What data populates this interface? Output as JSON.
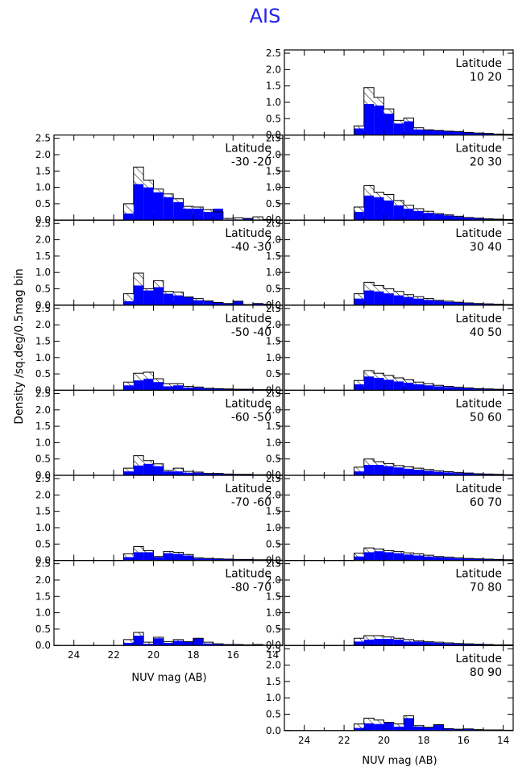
{
  "title": "AIS",
  "colors": {
    "title": "#2222ee",
    "observed": "#0000ff"
  },
  "chart_data": {
    "type": "histogram",
    "title": "AIS",
    "ylabel": "Density /sq.deg/0.5mag bin",
    "xlabel": "NUV mag (AB)",
    "xlim": [
      25,
      13.5
    ],
    "ylim": [
      0,
      2.6
    ],
    "x_ticks": [
      "24",
      "22",
      "20",
      "18",
      "16",
      "14"
    ],
    "y_ticks": [
      "0.0",
      "0.5",
      "1.0",
      "1.5",
      "2.0",
      "2.5"
    ],
    "bin_edges": [
      21.5,
      21.0,
      20.5,
      20.0,
      19.5,
      19.0,
      18.5,
      18.0,
      17.5,
      17.0,
      16.5,
      16.0,
      15.5,
      15.0,
      14.5,
      14.0,
      13.5
    ],
    "series": [
      {
        "name": "total"
      },
      {
        "name": "observed"
      }
    ],
    "legend": "none",
    "panels": [
      {
        "label_top": "Latitude",
        "label_bottom": "10  20",
        "hatched": [
          0.28,
          1.45,
          1.15,
          0.8,
          0.45,
          0.52,
          0.22,
          0.16,
          0.14,
          0.12,
          0.1,
          0.08,
          0.06,
          0.05,
          0.03,
          0.02
        ],
        "filled": [
          0.2,
          0.95,
          0.9,
          0.65,
          0.35,
          0.42,
          0.17,
          0.16,
          0.14,
          0.12,
          0.12,
          0.08,
          0.06,
          0.05,
          0.03,
          0.02
        ]
      },
      {
        "label_top": "Latitude",
        "label_bottom": "-30  -20",
        "hatched": [
          0.5,
          1.62,
          1.22,
          0.95,
          0.8,
          0.65,
          0.42,
          0.4,
          0.32,
          0.25,
          0.05,
          0.07,
          0.05,
          0.1,
          0.02,
          0.0
        ],
        "filled": [
          0.2,
          1.1,
          1.0,
          0.85,
          0.7,
          0.55,
          0.35,
          0.35,
          0.25,
          0.35,
          0.02,
          0.02,
          0.05,
          0.02,
          0.0,
          0.0
        ]
      },
      {
        "label_top": "Latitude",
        "label_bottom": "20  30",
        "hatched": [
          0.4,
          1.05,
          0.85,
          0.78,
          0.6,
          0.45,
          0.35,
          0.27,
          0.2,
          0.16,
          0.12,
          0.08,
          0.06,
          0.04,
          0.03,
          0.02
        ],
        "filled": [
          0.25,
          0.75,
          0.7,
          0.6,
          0.45,
          0.35,
          0.28,
          0.22,
          0.18,
          0.14,
          0.1,
          0.08,
          0.06,
          0.04,
          0.03,
          0.02
        ]
      },
      {
        "label_top": "Latitude",
        "label_bottom": "-40  -30",
        "hatched": [
          0.35,
          0.98,
          0.5,
          0.75,
          0.42,
          0.4,
          0.25,
          0.2,
          0.13,
          0.08,
          0.05,
          0.12,
          0.02,
          0.05,
          0.03,
          0.0
        ],
        "filled": [
          0.12,
          0.6,
          0.45,
          0.55,
          0.35,
          0.3,
          0.25,
          0.15,
          0.13,
          0.08,
          0.05,
          0.12,
          0.02,
          0.05,
          0.03,
          0.0
        ]
      },
      {
        "label_top": "Latitude",
        "label_bottom": "30  40",
        "hatched": [
          0.35,
          0.7,
          0.6,
          0.5,
          0.42,
          0.32,
          0.26,
          0.2,
          0.15,
          0.12,
          0.09,
          0.07,
          0.05,
          0.04,
          0.03,
          0.02
        ],
        "filled": [
          0.2,
          0.45,
          0.42,
          0.36,
          0.3,
          0.25,
          0.2,
          0.16,
          0.13,
          0.1,
          0.08,
          0.06,
          0.05,
          0.04,
          0.03,
          0.02
        ]
      },
      {
        "label_top": "Latitude",
        "label_bottom": "-50  -40",
        "hatched": [
          0.25,
          0.52,
          0.55,
          0.35,
          0.2,
          0.2,
          0.12,
          0.1,
          0.06,
          0.05,
          0.04,
          0.03,
          0.03,
          0.02,
          0.02,
          0.01
        ],
        "filled": [
          0.15,
          0.3,
          0.35,
          0.25,
          0.12,
          0.15,
          0.08,
          0.08,
          0.05,
          0.05,
          0.04,
          0.03,
          0.03,
          0.02,
          0.02,
          0.01
        ]
      },
      {
        "label_top": "Latitude",
        "label_bottom": "40  50",
        "hatched": [
          0.3,
          0.6,
          0.52,
          0.45,
          0.38,
          0.32,
          0.25,
          0.2,
          0.15,
          0.12,
          0.09,
          0.07,
          0.05,
          0.04,
          0.03,
          0.02
        ],
        "filled": [
          0.18,
          0.42,
          0.38,
          0.32,
          0.27,
          0.23,
          0.18,
          0.15,
          0.12,
          0.1,
          0.08,
          0.06,
          0.05,
          0.04,
          0.03,
          0.02
        ]
      },
      {
        "label_top": "Latitude",
        "label_bottom": "-60  -50",
        "hatched": [
          0.22,
          0.6,
          0.45,
          0.35,
          0.15,
          0.22,
          0.12,
          0.1,
          0.06,
          0.06,
          0.04,
          0.03,
          0.03,
          0.02,
          0.02,
          0.01
        ],
        "filled": [
          0.12,
          0.3,
          0.35,
          0.28,
          0.12,
          0.12,
          0.08,
          0.08,
          0.05,
          0.05,
          0.04,
          0.03,
          0.03,
          0.02,
          0.02,
          0.01
        ]
      },
      {
        "label_top": "Latitude",
        "label_bottom": "50  60",
        "hatched": [
          0.25,
          0.5,
          0.42,
          0.36,
          0.3,
          0.26,
          0.22,
          0.18,
          0.14,
          0.11,
          0.09,
          0.07,
          0.05,
          0.04,
          0.03,
          0.02
        ],
        "filled": [
          0.12,
          0.32,
          0.32,
          0.28,
          0.24,
          0.2,
          0.17,
          0.14,
          0.11,
          0.09,
          0.07,
          0.06,
          0.05,
          0.04,
          0.03,
          0.02
        ]
      },
      {
        "label_top": "Latitude",
        "label_bottom": "-70  -60",
        "hatched": [
          0.2,
          0.42,
          0.3,
          0.12,
          0.27,
          0.25,
          0.18,
          0.08,
          0.06,
          0.05,
          0.04,
          0.03,
          0.03,
          0.02,
          0.02,
          0.01
        ],
        "filled": [
          0.1,
          0.25,
          0.25,
          0.1,
          0.22,
          0.2,
          0.15,
          0.06,
          0.05,
          0.04,
          0.04,
          0.03,
          0.03,
          0.02,
          0.02,
          0.01
        ]
      },
      {
        "label_top": "Latitude",
        "label_bottom": "60  70",
        "hatched": [
          0.22,
          0.38,
          0.35,
          0.3,
          0.27,
          0.23,
          0.2,
          0.16,
          0.12,
          0.1,
          0.08,
          0.06,
          0.05,
          0.04,
          0.03,
          0.02
        ],
        "filled": [
          0.12,
          0.25,
          0.28,
          0.25,
          0.22,
          0.18,
          0.15,
          0.12,
          0.1,
          0.08,
          0.06,
          0.05,
          0.04,
          0.04,
          0.03,
          0.02
        ]
      },
      {
        "label_top": "Latitude",
        "label_bottom": "-80  -70",
        "hatched": [
          0.18,
          0.4,
          0.1,
          0.25,
          0.12,
          0.18,
          0.12,
          0.22,
          0.1,
          0.05,
          0.03,
          0.03,
          0.02,
          0.03,
          0.01,
          0.01
        ],
        "filled": [
          0.08,
          0.3,
          0.05,
          0.22,
          0.08,
          0.14,
          0.12,
          0.22,
          0.06,
          0.04,
          0.03,
          0.03,
          0.02,
          0.03,
          0.01,
          0.01
        ]
      },
      {
        "label_top": "Latitude",
        "label_bottom": "70  80",
        "hatched": [
          0.22,
          0.3,
          0.3,
          0.26,
          0.22,
          0.18,
          0.14,
          0.12,
          0.1,
          0.08,
          0.06,
          0.05,
          0.04,
          0.03,
          0.02,
          0.02
        ],
        "filled": [
          0.12,
          0.18,
          0.2,
          0.2,
          0.18,
          0.12,
          0.12,
          0.1,
          0.08,
          0.06,
          0.05,
          0.04,
          0.04,
          0.03,
          0.02,
          0.02
        ]
      },
      {
        "label_top": "Latitude",
        "label_bottom": "80  90",
        "hatched": [
          0.2,
          0.38,
          0.32,
          0.25,
          0.2,
          0.45,
          0.15,
          0.1,
          0.18,
          0.06,
          0.04,
          0.05,
          0.03,
          0.02,
          0.02,
          0.01
        ],
        "filled": [
          0.08,
          0.22,
          0.2,
          0.25,
          0.12,
          0.38,
          0.12,
          0.1,
          0.18,
          0.06,
          0.04,
          0.05,
          0.03,
          0.02,
          0.02,
          0.01
        ]
      }
    ]
  }
}
